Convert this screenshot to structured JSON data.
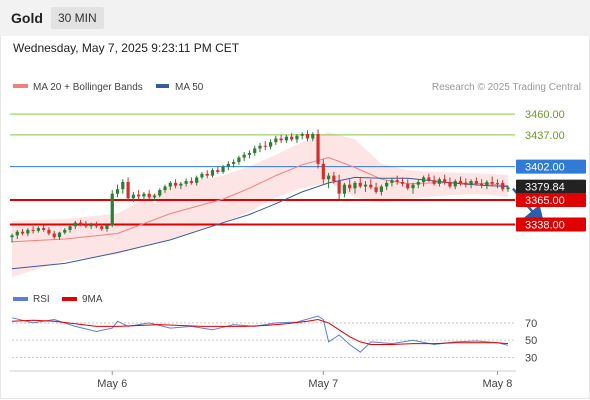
{
  "header": {
    "title": "Gold",
    "timeframe": "30 MIN"
  },
  "timestamp": "Wednesday, May 7, 2025 9:23:11 PM CET",
  "legend": {
    "ma20_label": "MA 20 + Bollinger Bands",
    "ma50_label": "MA 50",
    "source": "Research © 2025 Trading Central"
  },
  "rsi_legend": {
    "rsi_label": "RSI",
    "ma_label": "9MA"
  },
  "colors": {
    "up": "#2e7d32",
    "down": "#d32f2f",
    "ma20": "#f08080",
    "ma50": "#3a5a9a",
    "band": "#fde0e0",
    "resistance": "#8bc34a",
    "pivot": "#2f7bd6",
    "support": "#e00000",
    "current": "#222222",
    "rsi": "#5b7fd6",
    "rsi_ma": "#e00000"
  },
  "chart_data": [
    {
      "type": "candlestick",
      "x_ticks": [
        "May 6",
        "May 7",
        "May 8"
      ],
      "y_axis_labels": [
        "3460.00",
        "3437.00",
        "3402.00",
        "3379.84",
        "3365.00",
        "3338.00"
      ],
      "levels": [
        {
          "label": "3460.00",
          "value": 3460.0,
          "kind": "resistance"
        },
        {
          "label": "3437.00",
          "value": 3437.0,
          "kind": "resistance"
        },
        {
          "label": "3402.00",
          "value": 3402.0,
          "kind": "pivot"
        },
        {
          "label": "3379.84",
          "value": 3379.84,
          "kind": "current"
        },
        {
          "label": "3365.00",
          "value": 3365.0,
          "kind": "support"
        },
        {
          "label": "3338.00",
          "value": 3338.0,
          "kind": "support"
        }
      ],
      "ylim": [
        3270,
        3480
      ],
      "forecast": {
        "direction": "down",
        "from": 3379.84,
        "to": 3338.0
      },
      "series": [
        {
          "name": "MA 20 + Bollinger Bands",
          "x": [
            0,
            10,
            20,
            30,
            40,
            45,
            50,
            55,
            60,
            65,
            70,
            75,
            80,
            85,
            90,
            94
          ],
          "values": [
            3319,
            3322,
            3328,
            3350,
            3366,
            3378,
            3392,
            3404,
            3412,
            3401,
            3388,
            3383,
            3384,
            3384,
            3383,
            3381
          ]
        },
        {
          "name": "MA 50",
          "x": [
            0,
            10,
            20,
            30,
            40,
            45,
            50,
            55,
            60,
            65,
            70,
            75,
            80,
            85,
            90,
            94
          ],
          "values": [
            3289,
            3295,
            3307,
            3321,
            3340,
            3349,
            3361,
            3374,
            3384,
            3390,
            3389,
            3389,
            3386,
            3383,
            3381,
            3380
          ]
        }
      ],
      "bollinger": {
        "x": [
          0,
          10,
          20,
          30,
          40,
          45,
          50,
          55,
          60,
          65,
          70,
          75,
          80,
          85,
          90,
          94
        ],
        "upper": [
          3342,
          3344,
          3350,
          3382,
          3392,
          3402,
          3415,
          3429,
          3440,
          3432,
          3405,
          3398,
          3396,
          3395,
          3394,
          3393
        ],
        "lower": [
          3280,
          3298,
          3305,
          3322,
          3340,
          3352,
          3368,
          3378,
          3384,
          3368,
          3362,
          3366,
          3369,
          3371,
          3371,
          3368
        ]
      },
      "ohlc": [
        [
          3324,
          3328,
          3318,
          3326
        ],
        [
          3326,
          3332,
          3322,
          3330
        ],
        [
          3330,
          3333,
          3326,
          3328
        ],
        [
          3328,
          3334,
          3325,
          3332
        ],
        [
          3332,
          3336,
          3328,
          3331
        ],
        [
          3331,
          3336,
          3329,
          3334
        ],
        [
          3334,
          3337,
          3330,
          3332
        ],
        [
          3332,
          3335,
          3326,
          3328
        ],
        [
          3328,
          3331,
          3322,
          3324
        ],
        [
          3324,
          3330,
          3321,
          3329
        ],
        [
          3329,
          3334,
          3327,
          3332
        ],
        [
          3332,
          3338,
          3329,
          3336
        ],
        [
          3336,
          3342,
          3333,
          3340
        ],
        [
          3340,
          3343,
          3336,
          3338
        ],
        [
          3338,
          3342,
          3334,
          3336
        ],
        [
          3336,
          3340,
          3333,
          3338
        ],
        [
          3338,
          3341,
          3334,
          3336
        ],
        [
          3336,
          3339,
          3331,
          3333
        ],
        [
          3333,
          3338,
          3330,
          3337
        ],
        [
          3337,
          3376,
          3335,
          3372
        ],
        [
          3372,
          3382,
          3368,
          3377
        ],
        [
          3377,
          3388,
          3372,
          3385
        ],
        [
          3385,
          3390,
          3364,
          3367
        ],
        [
          3367,
          3374,
          3363,
          3371
        ],
        [
          3371,
          3376,
          3366,
          3369
        ],
        [
          3369,
          3374,
          3365,
          3372
        ],
        [
          3372,
          3376,
          3366,
          3368
        ],
        [
          3368,
          3372,
          3364,
          3370
        ],
        [
          3370,
          3378,
          3368,
          3376
        ],
        [
          3376,
          3382,
          3373,
          3380
        ],
        [
          3380,
          3386,
          3376,
          3384
        ],
        [
          3384,
          3388,
          3378,
          3381
        ],
        [
          3381,
          3385,
          3377,
          3383
        ],
        [
          3383,
          3389,
          3380,
          3386
        ],
        [
          3386,
          3390,
          3382,
          3384
        ],
        [
          3384,
          3392,
          3381,
          3390
        ],
        [
          3390,
          3396,
          3388,
          3394
        ],
        [
          3394,
          3398,
          3389,
          3392
        ],
        [
          3392,
          3400,
          3390,
          3398
        ],
        [
          3398,
          3402,
          3394,
          3396
        ],
        [
          3396,
          3404,
          3394,
          3402
        ],
        [
          3402,
          3408,
          3398,
          3405
        ],
        [
          3405,
          3410,
          3401,
          3407
        ],
        [
          3407,
          3414,
          3404,
          3412
        ],
        [
          3412,
          3418,
          3408,
          3415
        ],
        [
          3415,
          3420,
          3411,
          3417
        ],
        [
          3417,
          3425,
          3414,
          3422
        ],
        [
          3422,
          3428,
          3418,
          3425
        ],
        [
          3425,
          3430,
          3420,
          3424
        ],
        [
          3424,
          3432,
          3421,
          3429
        ],
        [
          3429,
          3436,
          3426,
          3433
        ],
        [
          3433,
          3437,
          3428,
          3431
        ],
        [
          3431,
          3437,
          3428,
          3435
        ],
        [
          3435,
          3439,
          3430,
          3432
        ],
        [
          3432,
          3438,
          3428,
          3436
        ],
        [
          3436,
          3440,
          3432,
          3438
        ],
        [
          3438,
          3442,
          3430,
          3433
        ],
        [
          3433,
          3440,
          3430,
          3438
        ],
        [
          3438,
          3443,
          3400,
          3405
        ],
        [
          3405,
          3410,
          3383,
          3388
        ],
        [
          3388,
          3395,
          3378,
          3392
        ],
        [
          3392,
          3396,
          3383,
          3386
        ],
        [
          3386,
          3393,
          3366,
          3372
        ],
        [
          3372,
          3384,
          3368,
          3382
        ],
        [
          3382,
          3388,
          3374,
          3378
        ],
        [
          3378,
          3386,
          3372,
          3384
        ],
        [
          3384,
          3390,
          3378,
          3380
        ],
        [
          3380,
          3386,
          3374,
          3382
        ],
        [
          3382,
          3388,
          3377,
          3379
        ],
        [
          3379,
          3384,
          3372,
          3374
        ],
        [
          3374,
          3382,
          3370,
          3380
        ],
        [
          3380,
          3387,
          3376,
          3384
        ],
        [
          3384,
          3390,
          3380,
          3387
        ],
        [
          3387,
          3392,
          3382,
          3385
        ],
        [
          3385,
          3390,
          3380,
          3383
        ],
        [
          3383,
          3388,
          3376,
          3378
        ],
        [
          3378,
          3384,
          3372,
          3382
        ],
        [
          3382,
          3388,
          3378,
          3385
        ],
        [
          3385,
          3392,
          3380,
          3390
        ],
        [
          3390,
          3394,
          3385,
          3387
        ],
        [
          3387,
          3392,
          3381,
          3383
        ],
        [
          3383,
          3390,
          3380,
          3388
        ],
        [
          3388,
          3393,
          3382,
          3385
        ],
        [
          3385,
          3390,
          3378,
          3380
        ],
        [
          3380,
          3388,
          3377,
          3386
        ],
        [
          3386,
          3391,
          3381,
          3384
        ],
        [
          3384,
          3389,
          3379,
          3382
        ],
        [
          3382,
          3388,
          3378,
          3386
        ],
        [
          3386,
          3390,
          3381,
          3383
        ],
        [
          3383,
          3388,
          3378,
          3381
        ],
        [
          3381,
          3387,
          3377,
          3385
        ],
        [
          3385,
          3391,
          3380,
          3383
        ],
        [
          3383,
          3388,
          3378,
          3384
        ],
        [
          3384,
          3387,
          3375,
          3377
        ],
        [
          3377,
          3381,
          3374,
          3379
        ]
      ]
    },
    {
      "type": "line",
      "title": "RSI",
      "y_ticks": [
        "70",
        "50",
        "30"
      ],
      "ylim": [
        20,
        85
      ],
      "series": [
        {
          "name": "RSI",
          "x": [
            0,
            4,
            8,
            12,
            16,
            19,
            20,
            22,
            26,
            30,
            34,
            38,
            42,
            46,
            50,
            54,
            58,
            59,
            60,
            62,
            64,
            66,
            68,
            72,
            76,
            80,
            84,
            88,
            92,
            94
          ],
          "values": [
            76,
            70,
            74,
            66,
            60,
            64,
            72,
            66,
            70,
            64,
            66,
            62,
            68,
            66,
            70,
            71,
            78,
            74,
            48,
            56,
            45,
            36,
            48,
            46,
            50,
            45,
            48,
            49,
            47,
            44
          ]
        },
        {
          "name": "9MA",
          "x": [
            0,
            4,
            8,
            12,
            16,
            20,
            24,
            28,
            32,
            36,
            40,
            44,
            48,
            52,
            56,
            58,
            60,
            62,
            64,
            66,
            68,
            72,
            76,
            80,
            84,
            88,
            92,
            94
          ],
          "values": [
            72,
            73,
            72,
            69,
            66,
            66,
            67,
            68,
            67,
            66,
            66,
            66,
            67,
            69,
            72,
            74,
            70,
            62,
            54,
            48,
            45,
            45,
            46,
            46,
            47,
            47,
            47,
            46
          ]
        }
      ]
    }
  ]
}
